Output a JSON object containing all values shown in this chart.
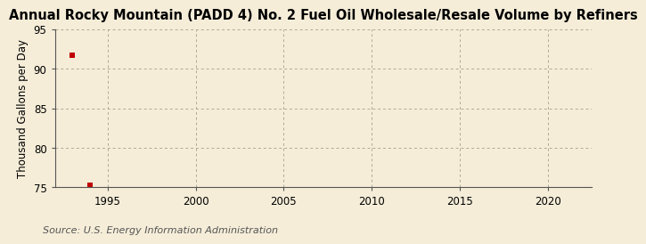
{
  "title": "Annual Rocky Mountain (PADD 4) No. 2 Fuel Oil Wholesale/Resale Volume by Refiners",
  "ylabel": "Thousand Gallons per Day",
  "source": "Source: U.S. Energy Information Administration",
  "x_data": [
    1993,
    1994
  ],
  "y_data": [
    91.7,
    75.3
  ],
  "marker_color": "#c00000",
  "marker_size": 4,
  "xlim": [
    1992.0,
    2022.5
  ],
  "ylim": [
    75,
    95
  ],
  "yticks": [
    75,
    80,
    85,
    90,
    95
  ],
  "xticks": [
    1995,
    2000,
    2005,
    2010,
    2015,
    2020
  ],
  "background_color": "#f5edd8",
  "grid_color": "#b0a898",
  "title_fontsize": 10.5,
  "label_fontsize": 8.5,
  "tick_fontsize": 8.5,
  "source_fontsize": 8
}
